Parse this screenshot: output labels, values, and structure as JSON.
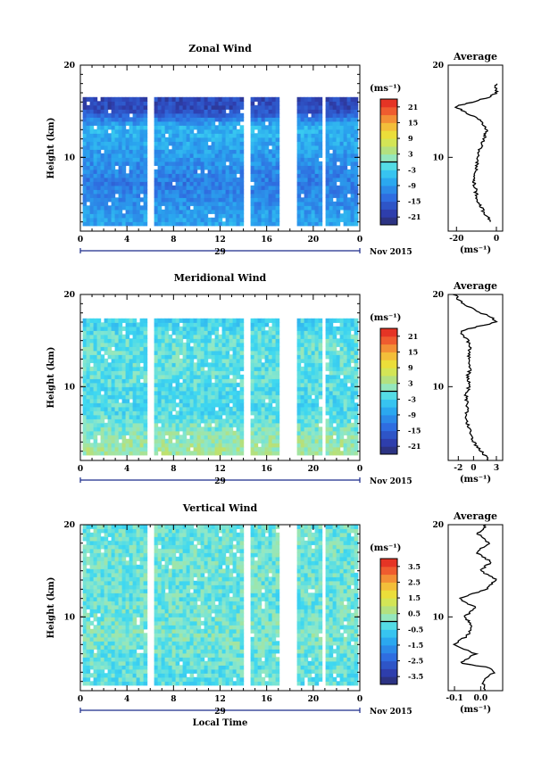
{
  "x_axis": {
    "ticks": [
      "0",
      "4",
      "8",
      "12",
      "16",
      "20",
      "0"
    ],
    "day_label": "29",
    "date_label": "Nov 2015",
    "xlabel": "Local Time"
  },
  "y_axis": {
    "label": "Height (km)",
    "ticks": [
      "10",
      "20"
    ]
  },
  "colorbar_unit": "(ms⁻¹)",
  "panels": [
    {
      "title": "Zonal Wind",
      "colorbar_ticks": [
        "21",
        "15",
        "9",
        "3",
        "-3",
        "-9",
        "-15",
        "-21"
      ],
      "profile": {
        "title": "Average",
        "x_ticks": [
          "-20",
          "0"
        ],
        "x_label": "(ms⁻¹)"
      }
    },
    {
      "title": "Meridional Wind",
      "colorbar_ticks": [
        "21",
        "15",
        "9",
        "3",
        "-3",
        "-9",
        "-15",
        "-21"
      ],
      "profile": {
        "title": "Average",
        "x_ticks": [
          "-2",
          "0",
          "3"
        ],
        "x_label": "(ms⁻¹)"
      }
    },
    {
      "title": "Vertical Wind",
      "colorbar_ticks": [
        "3.5",
        "2.5",
        "1.5",
        "0.5",
        "-0.5",
        "-1.5",
        "-2.5",
        "-3.5"
      ],
      "profile": {
        "title": "Average",
        "x_ticks": [
          "-0.1",
          "0.0"
        ],
        "x_label": "(ms⁻¹)"
      }
    }
  ],
  "chart_data": [
    {
      "type": "heatmap",
      "title": "Zonal Wind",
      "xlabel": "",
      "ylabel": "Height (km)",
      "xlim": [
        0,
        24
      ],
      "ylim": [
        2,
        20
      ],
      "colorbar_range": [
        -24,
        24
      ],
      "data_gaps_hours": [
        [
          5.5,
          6.2
        ],
        [
          14.0,
          14.4
        ],
        [
          16.8,
          18.4
        ],
        [
          20.5,
          21.0
        ]
      ],
      "top_height_km": 16.2,
      "typical_value_by_height": {
        "heights": [
          3,
          5,
          7,
          9,
          11,
          13,
          15
        ],
        "values": [
          -8,
          -10,
          -12,
          -10,
          -8,
          -6,
          -18
        ]
      },
      "average_profile": {
        "height": [
          3,
          4,
          5,
          6,
          7,
          8,
          9,
          10,
          11,
          12,
          13,
          14,
          15,
          15.5,
          16,
          16.5,
          17,
          18
        ],
        "wind": [
          -3,
          -6,
          -9,
          -10,
          -11,
          -11,
          -10,
          -9,
          -8,
          -6,
          -5,
          -8,
          -16,
          -21,
          -12,
          -4,
          0,
          0
        ]
      }
    },
    {
      "type": "heatmap",
      "title": "Meridional Wind",
      "xlabel": "",
      "ylabel": "Height (km)",
      "xlim": [
        0,
        24
      ],
      "ylim": [
        2,
        20
      ],
      "colorbar_range": [
        -24,
        24
      ],
      "data_gaps_hours": [
        [
          5.5,
          6.2
        ],
        [
          14.0,
          14.4
        ],
        [
          16.8,
          18.4
        ],
        [
          20.5,
          21.0
        ]
      ],
      "top_height_km": 17.2,
      "typical_value_by_height": {
        "heights": [
          3,
          5,
          7,
          9,
          11,
          13,
          15,
          16.5
        ],
        "values": [
          3,
          1,
          -2,
          -2,
          -1,
          -1,
          -1,
          -3
        ]
      },
      "average_profile": {
        "height": [
          2,
          3,
          4,
          5,
          6,
          7,
          8,
          9,
          10,
          11,
          12,
          13,
          14,
          15,
          16,
          16.5,
          17,
          17.5,
          18,
          19,
          20
        ],
        "wind": [
          2,
          1,
          0,
          -0.3,
          -0.8,
          -1,
          -0.8,
          -1,
          -0.6,
          -0.8,
          -0.4,
          -0.7,
          -0.5,
          -0.7,
          -1.8,
          0.5,
          3,
          2.5,
          1,
          -1.5,
          -2.5
        ]
      }
    },
    {
      "type": "heatmap",
      "title": "Vertical Wind",
      "xlabel": "Local Time",
      "ylabel": "Height (km)",
      "xlim": [
        0,
        24
      ],
      "ylim": [
        2,
        20
      ],
      "colorbar_range": [
        -4,
        4
      ],
      "data_gaps_hours": [
        [
          5.5,
          6.2
        ],
        [
          14.0,
          14.4
        ],
        [
          16.8,
          18.4
        ],
        [
          20.5,
          21.0
        ]
      ],
      "top_height_km": 20,
      "typical_value_by_height": {
        "heights": [
          4,
          8,
          12,
          16,
          19
        ],
        "values": [
          -0.2,
          0.1,
          -0.1,
          0,
          -0.1
        ]
      },
      "average_profile": {
        "height": [
          2,
          3,
          4,
          4.5,
          5,
          6,
          7,
          8,
          9,
          10,
          11,
          12,
          13,
          14,
          15,
          16,
          17,
          18,
          19,
          20
        ],
        "wind": [
          0.02,
          0.01,
          0.05,
          0.03,
          -0.08,
          -0.02,
          -0.1,
          -0.05,
          -0.03,
          -0.06,
          -0.02,
          -0.08,
          0.02,
          0.06,
          0.0,
          0.04,
          -0.02,
          0.03,
          -0.01,
          0.02
        ]
      }
    }
  ]
}
